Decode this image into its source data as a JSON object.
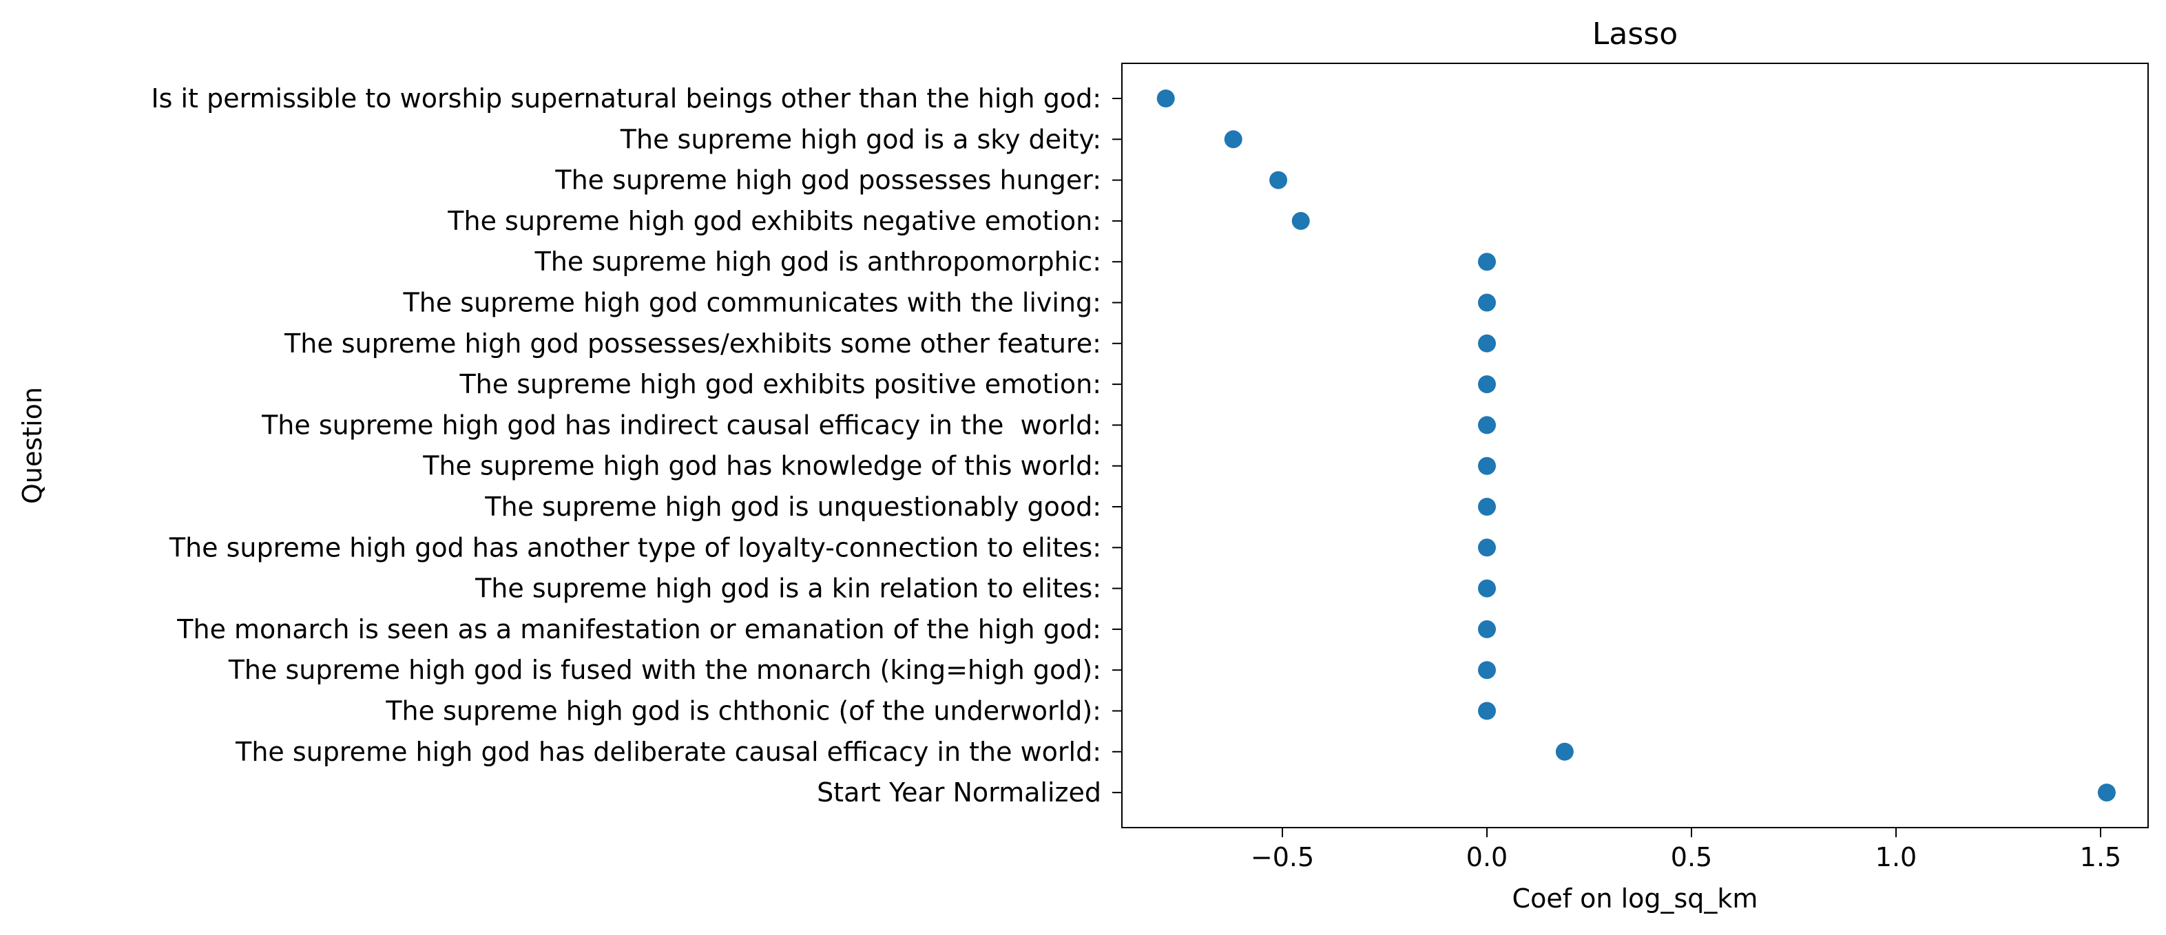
{
  "chart_data": {
    "type": "scatter",
    "title": "Lasso",
    "xlabel": "Coef on log_sq_km",
    "ylabel": "Question",
    "xlim": [
      -0.9,
      1.63
    ],
    "xticks": [
      -0.5,
      0.0,
      0.5,
      1.0,
      1.5
    ],
    "xtick_labels": [
      "−0.5",
      "0.0",
      "0.5",
      "1.0",
      "1.5"
    ],
    "grid": false,
    "marker_color": "#1f77b4",
    "points": [
      {
        "label": "Is it permissible to worship supernatural beings other than the high god:",
        "value": -0.785
      },
      {
        "label": "The supreme high god is a sky deity:",
        "value": -0.62
      },
      {
        "label": "The supreme high god possesses hunger:",
        "value": -0.51
      },
      {
        "label": "The supreme high god exhibits negative emotion:",
        "value": -0.455
      },
      {
        "label": "The supreme high god is anthropomorphic:",
        "value": 0.0
      },
      {
        "label": "The supreme high god communicates with the living:",
        "value": 0.0
      },
      {
        "label": "The supreme high god possesses/exhibits some other feature:",
        "value": 0.0
      },
      {
        "label": "The supreme high god exhibits positive emotion:",
        "value": 0.0
      },
      {
        "label": "The supreme high god has indirect causal efficacy in the  world:",
        "value": 0.0
      },
      {
        "label": "The supreme high god has knowledge of this world:",
        "value": 0.0
      },
      {
        "label": "The supreme high god is unquestionably good:",
        "value": 0.0
      },
      {
        "label": "The supreme high god has another type of loyalty-connection to elites:",
        "value": 0.0
      },
      {
        "label": "The supreme high god is a kin relation to elites:",
        "value": 0.0
      },
      {
        "label": "The monarch is seen as a manifestation or emanation of the high god:",
        "value": 0.0
      },
      {
        "label": "The supreme high god is fused with the monarch (king=high god):",
        "value": 0.0
      },
      {
        "label": "The supreme high god is chthonic (of the underworld):",
        "value": 0.0
      },
      {
        "label": "The supreme high god has deliberate causal efficacy in the world:",
        "value": 0.19
      },
      {
        "label": "Start Year Normalized",
        "value": 1.515
      }
    ]
  }
}
